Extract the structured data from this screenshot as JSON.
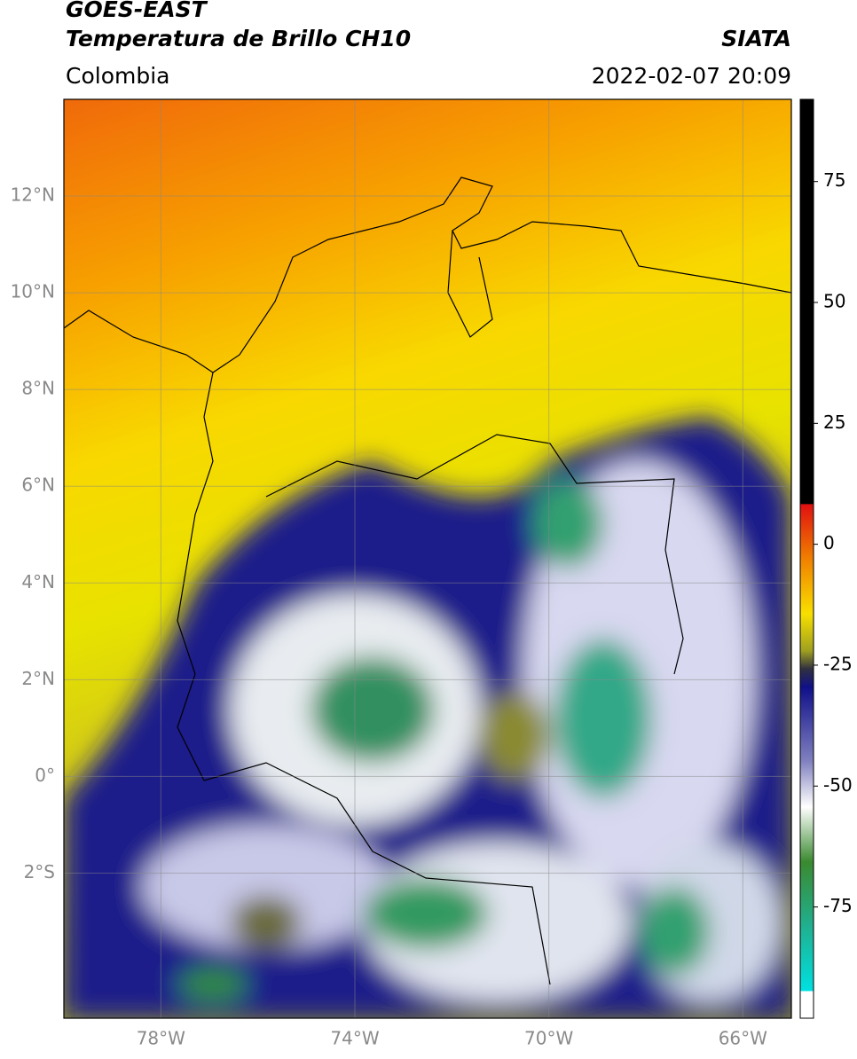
{
  "header": {
    "title": "GOES-EAST",
    "subtitle": "Temperatura de Brillo CH10",
    "region": "Colombia",
    "source": "SIATA",
    "datetime": "2022-02-07 20:09"
  },
  "map": {
    "xlim": [
      -80,
      -65
    ],
    "ylim": [
      -5,
      14
    ],
    "grid": true,
    "xticks": [
      {
        "value": -78,
        "label": "78°W"
      },
      {
        "value": -74,
        "label": "74°W"
      },
      {
        "value": -70,
        "label": "70°W"
      },
      {
        "value": -66,
        "label": "66°W"
      }
    ],
    "yticks": [
      {
        "value": 12,
        "label": "12°N"
      },
      {
        "value": 10,
        "label": "10°N"
      },
      {
        "value": 8,
        "label": "8°N"
      },
      {
        "value": 6,
        "label": "6°N"
      },
      {
        "value": 4,
        "label": "4°N"
      },
      {
        "value": 2,
        "label": "2°N"
      },
      {
        "value": 0,
        "label": "0°"
      },
      {
        "value": -2,
        "label": "2°S"
      }
    ]
  },
  "colorbar": {
    "lim": [
      -98,
      92
    ],
    "ticks": [
      75,
      50,
      25,
      0,
      -25,
      -50,
      -75
    ]
  }
}
